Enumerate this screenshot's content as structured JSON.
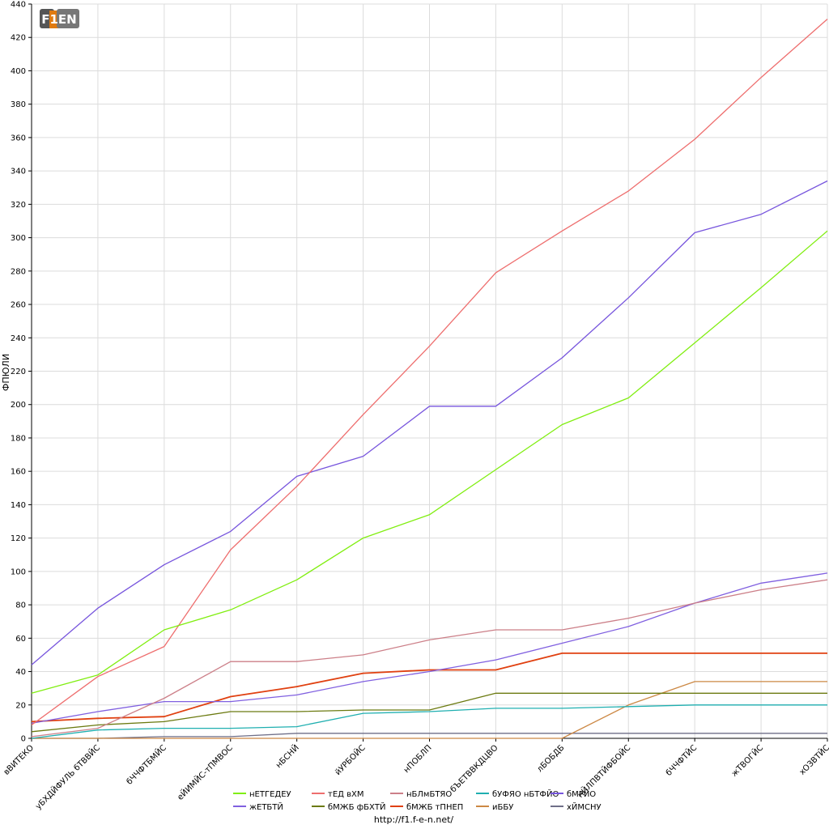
{
  "logo": {
    "text": "F1EN"
  },
  "footer": {
    "url": "http://f1.f-e-n.net/"
  },
  "chart_data": {
    "type": "line",
    "ylabel": "ФПЮЛИ",
    "ylim": [
      0,
      440
    ],
    "ytick_step": 20,
    "grid": true,
    "legend_position": "bottom",
    "categories": [
      "вВИТЕКО",
      "уБХДЙФУЛЬ бТВВЙС",
      "бЧЧФТБМЙС",
      "еЙИМЙС-тПМВОС",
      "нБСНЙ",
      "йУРБОЙС",
      "нПОБЛП",
      "бЪЕТВВКДЦВО",
      "лБОБДБ",
      "нЙЛПВТЙФБОЙС",
      "бЧЧФТЙС",
      "жТВОГЙС",
      "хОЗВТЙС"
    ],
    "series": [
      {
        "name": "нЕТГЕДЕУ",
        "color": "#80ee10",
        "values": [
          27,
          38,
          65,
          77,
          95,
          120,
          134,
          161,
          188,
          204,
          237,
          270,
          304
        ]
      },
      {
        "name": "тЕД вХМ",
        "color": "#ee6e6e",
        "values": [
          8,
          37,
          55,
          113,
          151,
          194,
          235,
          279,
          304,
          328,
          359,
          396,
          431
        ]
      },
      {
        "name": "нБЛмБТЯО",
        "color": "#cc7f88",
        "values": [
          1,
          6,
          24,
          46,
          46,
          50,
          59,
          65,
          65,
          72,
          81,
          89,
          95
        ]
      },
      {
        "name": "бУФЯО нБТФЙО",
        "color": "#1fafb0",
        "values": [
          0,
          5,
          6,
          6,
          7,
          15,
          16,
          18,
          18,
          19,
          20,
          20,
          20
        ]
      },
      {
        "name": "бМРЙО",
        "color": "#7755dd",
        "values": [
          44,
          78,
          104,
          124,
          157,
          169,
          199,
          199,
          228,
          264,
          303,
          314,
          334
        ]
      },
      {
        "name": "жЕТБТЙ",
        "color": "#8060e0",
        "values": [
          9,
          16,
          22,
          22,
          26,
          34,
          40,
          47,
          57,
          67,
          81,
          93,
          99
        ]
      },
      {
        "name": "бМЖБ фБХТЙ",
        "color": "#6b7a10",
        "values": [
          4,
          8,
          10,
          16,
          16,
          17,
          17,
          27,
          27,
          27,
          27,
          27,
          27
        ]
      },
      {
        "name": "бМЖБ тПНЕП",
        "color": "#e04010",
        "values": [
          10,
          12,
          13,
          25,
          31,
          39,
          41,
          41,
          51,
          51,
          51,
          51,
          51
        ]
      },
      {
        "name": "иББУ",
        "color": "#cc8844",
        "values": [
          0,
          0,
          0,
          0,
          0,
          0,
          0,
          0,
          0,
          20,
          34,
          34,
          34
        ]
      },
      {
        "name": "хЙМСНУ",
        "color": "#6f6f88",
        "values": [
          0,
          0,
          1,
          1,
          3,
          3,
          3,
          3,
          3,
          3,
          3,
          3,
          3
        ]
      }
    ]
  }
}
